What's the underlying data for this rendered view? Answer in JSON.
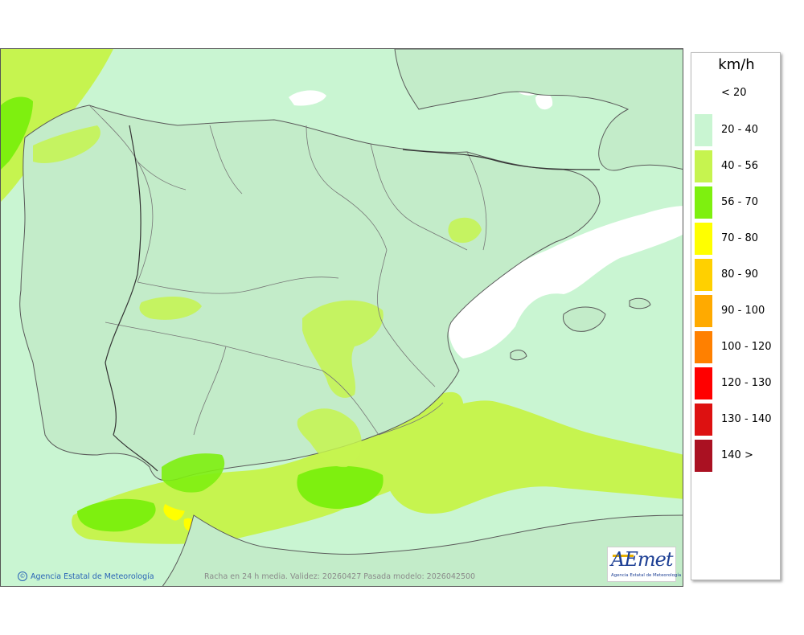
{
  "legend": {
    "unit": "km/h",
    "items": [
      {
        "label": "< 20",
        "color": "#ffffff"
      },
      {
        "label": "20 - 40",
        "color": "#c9f5d2"
      },
      {
        "label": "40 - 56",
        "color": "#c6f44f"
      },
      {
        "label": "56 - 70",
        "color": "#7ef00f"
      },
      {
        "label": "70 - 80",
        "color": "#ffff00"
      },
      {
        "label": "80 - 90",
        "color": "#ffd000"
      },
      {
        "label": "90 - 100",
        "color": "#ffaa00"
      },
      {
        "label": "100 - 120",
        "color": "#ff8000"
      },
      {
        "label": "120 - 130",
        "color": "#ff0000"
      },
      {
        "label": "130 - 140",
        "color": "#dd1111"
      },
      {
        "label": "140 >",
        "color": "#aa1122"
      }
    ]
  },
  "footer": {
    "credit": "Agencia Estatal de Meteorología",
    "caption": "Racha en 24 h media. Validez: 20260427 Pasada modelo: 2026042500"
  },
  "logo": {
    "wordmark": "AEmet",
    "subtitle": "Agencia Estatal de Meteorología"
  }
}
